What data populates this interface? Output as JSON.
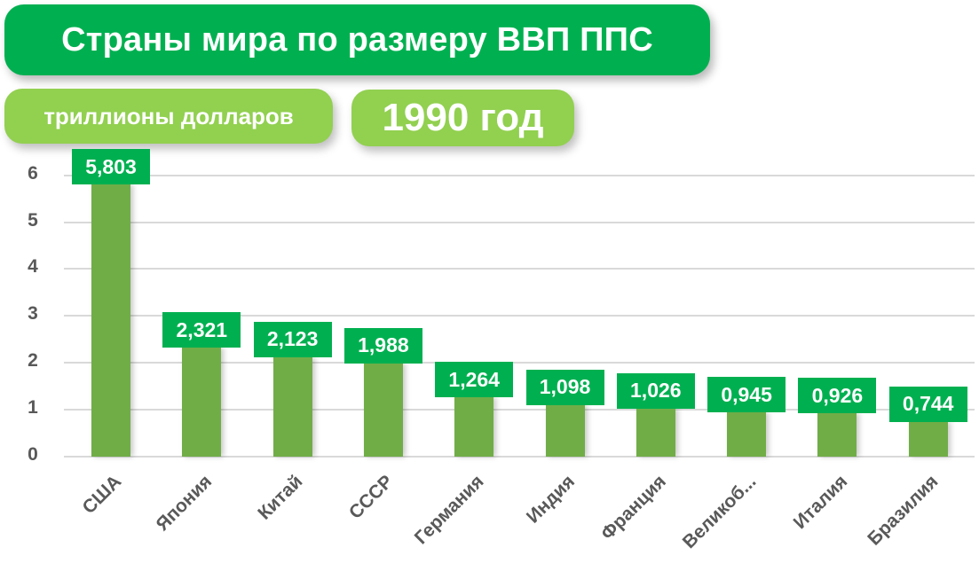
{
  "header": {
    "title": "Страны мира по размеру ВВП ППС",
    "unit": "триллионы долларов",
    "year": "1990 год"
  },
  "colors": {
    "title_bg": "#00B050",
    "subtitle_bg": "#92D050",
    "bar": "#70AD47",
    "label_bg": "#00B050",
    "axis_text": "#595959",
    "gridline": "#D9D9D9"
  },
  "chart_data": {
    "type": "bar",
    "title": "Страны мира по размеру ВВП ППС",
    "subtitle": "триллионы долларов, 1990 год",
    "xlabel": "",
    "ylabel": "",
    "categories": [
      "США",
      "Япония",
      "Китай",
      "СССР",
      "Германия",
      "Индия",
      "Франция",
      "Великоб...",
      "Италия",
      "Бразилия"
    ],
    "values": [
      5.803,
      2.321,
      2.123,
      1.988,
      1.264,
      1.098,
      1.026,
      0.945,
      0.926,
      0.744
    ],
    "value_labels": [
      "5,803",
      "2,321",
      "2,123",
      "1,988",
      "1,264",
      "1,098",
      "1,026",
      "0,945",
      "0,926",
      "0,744"
    ],
    "yticks": [
      "0",
      "1",
      "2",
      "3",
      "4",
      "5",
      "6"
    ],
    "ylim": [
      0,
      6
    ],
    "grid": true,
    "legend": "none"
  }
}
